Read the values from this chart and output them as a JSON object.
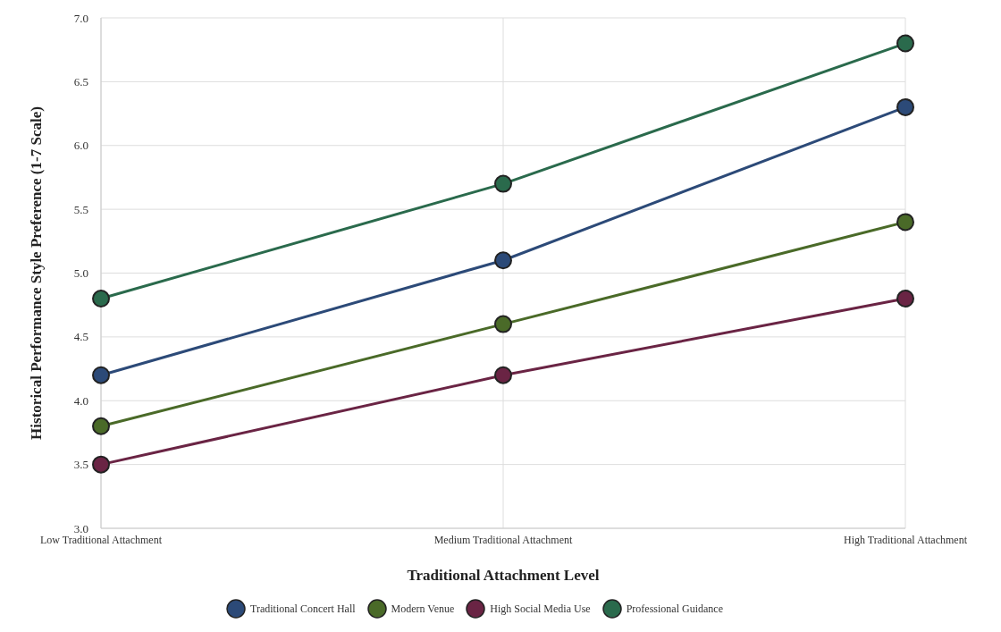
{
  "chart_data": {
    "type": "line",
    "xlabel": "Traditional Attachment Level",
    "ylabel": "Historical Performance Style Preference (1-7 Scale)",
    "categories": [
      "Low Traditional Attachment",
      "Medium Traditional Attachment",
      "High Traditional Attachment"
    ],
    "series": [
      {
        "name": "Traditional Concert Hall",
        "color": "#2c4a78",
        "values": [
          4.2,
          5.1,
          6.3
        ]
      },
      {
        "name": "Modern Venue",
        "color": "#4a6a28",
        "values": [
          3.8,
          4.6,
          5.4
        ]
      },
      {
        "name": "High Social Media Use",
        "color": "#6a2444",
        "values": [
          3.5,
          4.2,
          4.8
        ]
      },
      {
        "name": "Professional Guidance",
        "color": "#2a6a4c",
        "values": [
          4.8,
          5.7,
          6.8
        ]
      }
    ],
    "ylim": [
      3.0,
      7.0
    ],
    "yticks": [
      {
        "value": 3,
        "label": "3.0"
      },
      {
        "value": 3.5,
        "label": "3.5"
      },
      {
        "value": 4,
        "label": "4.0"
      },
      {
        "value": 4.5,
        "label": "4.5"
      },
      {
        "value": 5,
        "label": "5.0"
      },
      {
        "value": 5.5,
        "label": "5.5"
      },
      {
        "value": 6,
        "label": "6.0"
      },
      {
        "value": 6.5,
        "label": "6.5"
      },
      {
        "value": 7,
        "label": "7.0"
      }
    ],
    "grid": true,
    "legend": "bottom",
    "marker": "circle",
    "line_style": "solid"
  }
}
